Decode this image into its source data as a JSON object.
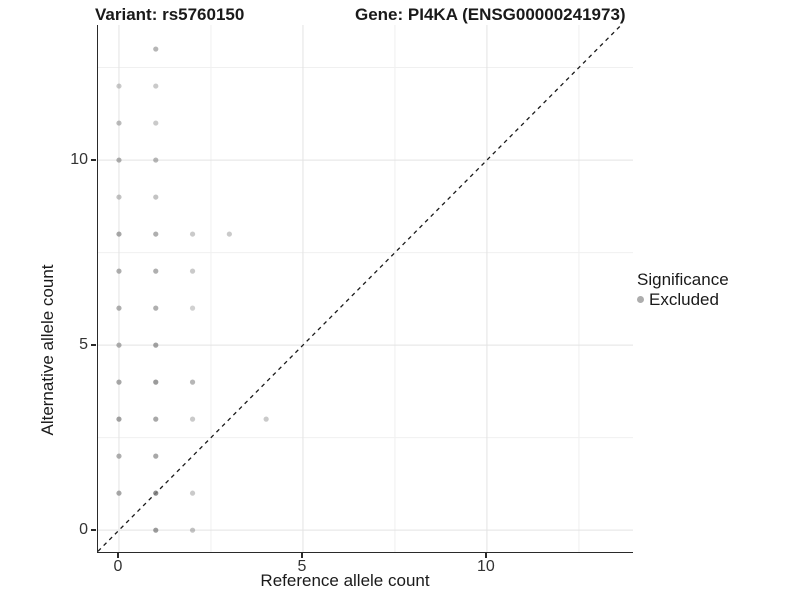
{
  "titles": {
    "left": "Variant: rs5760150",
    "right": "Gene: PI4KA (ENSG00000241973)"
  },
  "legend": {
    "title": "Significance",
    "items": [
      {
        "label": "Excluded",
        "key_color": "#adadad"
      }
    ]
  },
  "colors": {
    "point": "#7a7a7a",
    "grid_major": "#e3e3e3",
    "grid_minor": "#f0f0f0",
    "identity_line": "#1a1a1a",
    "axis_line": "#2a2a2a",
    "tick_text": "#333333"
  },
  "chart_data": {
    "type": "scatter",
    "xlabel": "Reference allele count",
    "ylabel": "Alternative allele count",
    "xlim": [
      -0.57,
      13.97
    ],
    "ylim": [
      -0.59,
      13.65
    ],
    "x_major_ticks": [
      0,
      5,
      10
    ],
    "x_minor_ticks": [
      2.5,
      7.5,
      12.5
    ],
    "y_major_ticks": [
      0,
      5,
      10
    ],
    "y_minor_ticks": [
      2.5,
      7.5,
      12.5
    ],
    "grid": true,
    "legend_position": "right",
    "identity_line": {
      "slope": 1,
      "intercept": 0,
      "style": "dashed"
    },
    "series": [
      {
        "name": "Excluded",
        "color": "#7a7a7a",
        "points": [
          {
            "x": 1,
            "y": 13,
            "alpha": 0.55
          },
          {
            "x": 0,
            "y": 12,
            "alpha": 0.4
          },
          {
            "x": 1,
            "y": 12,
            "alpha": 0.4
          },
          {
            "x": 0,
            "y": 11,
            "alpha": 0.5
          },
          {
            "x": 1,
            "y": 11,
            "alpha": 0.4
          },
          {
            "x": 0,
            "y": 10,
            "alpha": 0.6
          },
          {
            "x": 1,
            "y": 10,
            "alpha": 0.55
          },
          {
            "x": 0,
            "y": 9,
            "alpha": 0.45
          },
          {
            "x": 1,
            "y": 9,
            "alpha": 0.45
          },
          {
            "x": 0,
            "y": 8,
            "alpha": 0.65
          },
          {
            "x": 1,
            "y": 8,
            "alpha": 0.6
          },
          {
            "x": 2,
            "y": 8,
            "alpha": 0.4
          },
          {
            "x": 3,
            "y": 8,
            "alpha": 0.4
          },
          {
            "x": 0,
            "y": 7,
            "alpha": 0.6
          },
          {
            "x": 1,
            "y": 7,
            "alpha": 0.6
          },
          {
            "x": 2,
            "y": 7,
            "alpha": 0.4
          },
          {
            "x": 0,
            "y": 6,
            "alpha": 0.6
          },
          {
            "x": 1,
            "y": 6,
            "alpha": 0.6
          },
          {
            "x": 2,
            "y": 6,
            "alpha": 0.35
          },
          {
            "x": 0,
            "y": 5,
            "alpha": 0.6
          },
          {
            "x": 1,
            "y": 5,
            "alpha": 0.7
          },
          {
            "x": 0,
            "y": 4,
            "alpha": 0.65
          },
          {
            "x": 1,
            "y": 4,
            "alpha": 0.75
          },
          {
            "x": 2,
            "y": 4,
            "alpha": 0.55
          },
          {
            "x": 0,
            "y": 3,
            "alpha": 0.7
          },
          {
            "x": 1,
            "y": 3,
            "alpha": 0.65
          },
          {
            "x": 2,
            "y": 3,
            "alpha": 0.4
          },
          {
            "x": 4,
            "y": 3,
            "alpha": 0.4
          },
          {
            "x": 0,
            "y": 2,
            "alpha": 0.6
          },
          {
            "x": 1,
            "y": 2,
            "alpha": 0.65
          },
          {
            "x": 0,
            "y": 1,
            "alpha": 0.65
          },
          {
            "x": 1,
            "y": 1,
            "alpha": 0.85
          },
          {
            "x": 2,
            "y": 1,
            "alpha": 0.4
          },
          {
            "x": 1,
            "y": 0,
            "alpha": 0.75
          },
          {
            "x": 2,
            "y": 0,
            "alpha": 0.45
          }
        ]
      }
    ]
  }
}
